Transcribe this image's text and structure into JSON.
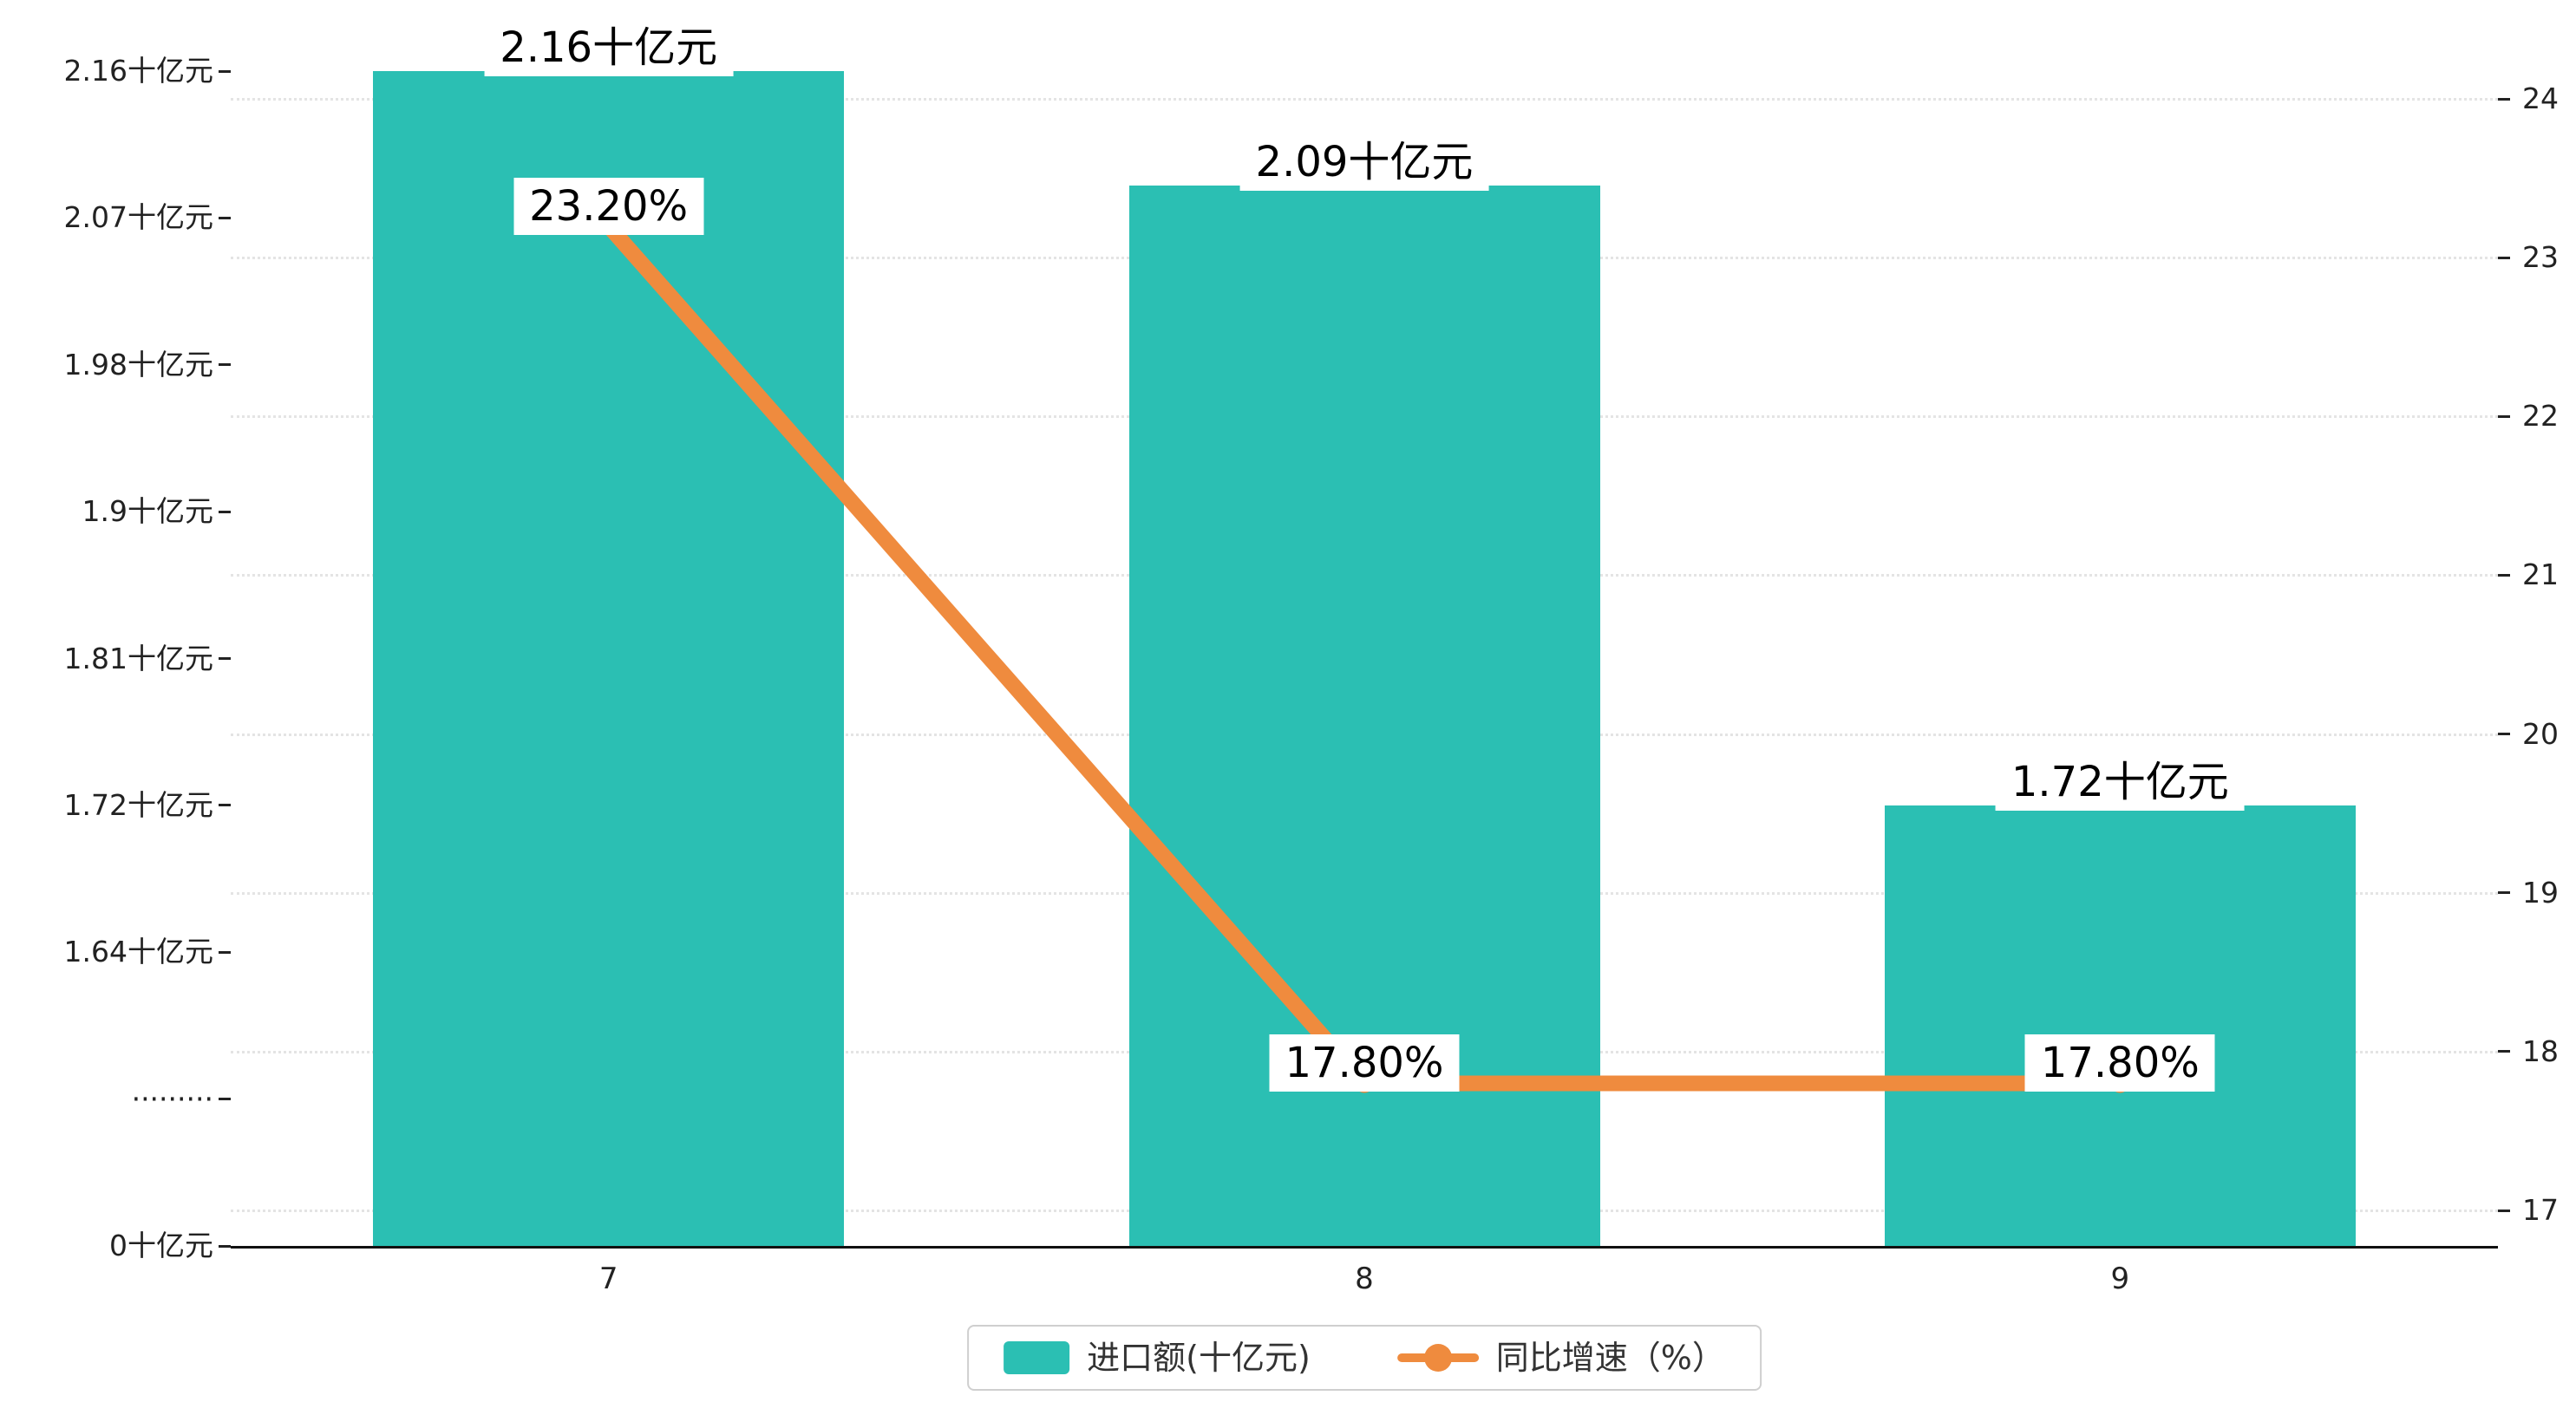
{
  "colors": {
    "bar": "#2bbfb3",
    "line": "#ef8b3e",
    "text": "#222222",
    "grid": "#e4e4e4",
    "axis": "#111111",
    "label_bg": "#ffffff"
  },
  "chart_data": {
    "type": "bar",
    "subtype": "bar+line combo",
    "categories": [
      "7",
      "8",
      "9"
    ],
    "series": [
      {
        "name": "进口额(十亿元)",
        "type": "bar",
        "color": "#2bbfb3",
        "values": [
          2.16,
          2.09,
          1.72
        ],
        "data_labels": [
          "2.16十亿元",
          "2.09十亿元",
          "1.72十亿元"
        ]
      },
      {
        "name": "同比增速（%）",
        "type": "line",
        "color": "#ef8b3e",
        "values": [
          23.2,
          17.8,
          17.8
        ],
        "data_labels": [
          "23.20%",
          "17.80%",
          "17.80%"
        ]
      }
    ],
    "left_axis": {
      "tick_labels": [
        "2.16十亿元",
        "2.07十亿元",
        "1.98十亿元",
        "1.9十亿元",
        "1.81十亿元",
        "1.72十亿元",
        "1.64十亿元",
        "·········",
        "0十亿元"
      ],
      "tick_values": [
        2.16,
        2.07,
        1.98,
        1.9,
        1.81,
        1.72,
        1.64,
        null,
        0
      ],
      "broken_axis": true
    },
    "right_axis": {
      "tick_labels": [
        "24",
        "23",
        "22",
        "21",
        "20",
        "19",
        "18",
        "17"
      ],
      "min": 17,
      "max": 24
    },
    "x_axis": {
      "tick_labels": [
        "7",
        "8",
        "9"
      ]
    },
    "grid": true,
    "legend_position": "bottom-center",
    "legend": {
      "items": [
        {
          "label": "进口额(十亿元)",
          "marker": "bar-swatch",
          "color": "#2bbfb3"
        },
        {
          "label": "同比增速（%）",
          "marker": "line-dot",
          "color": "#ef8b3e"
        }
      ]
    }
  }
}
